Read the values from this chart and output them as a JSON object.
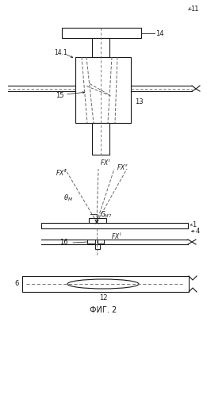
{
  "bg_color": "#ffffff",
  "line_color": "#1a1a1a",
  "dashed_color": "#666666",
  "fig_label": "ФИГ. 2",
  "fig_width": 2.61,
  "fig_height": 4.98,
  "fig_dpi": 100
}
